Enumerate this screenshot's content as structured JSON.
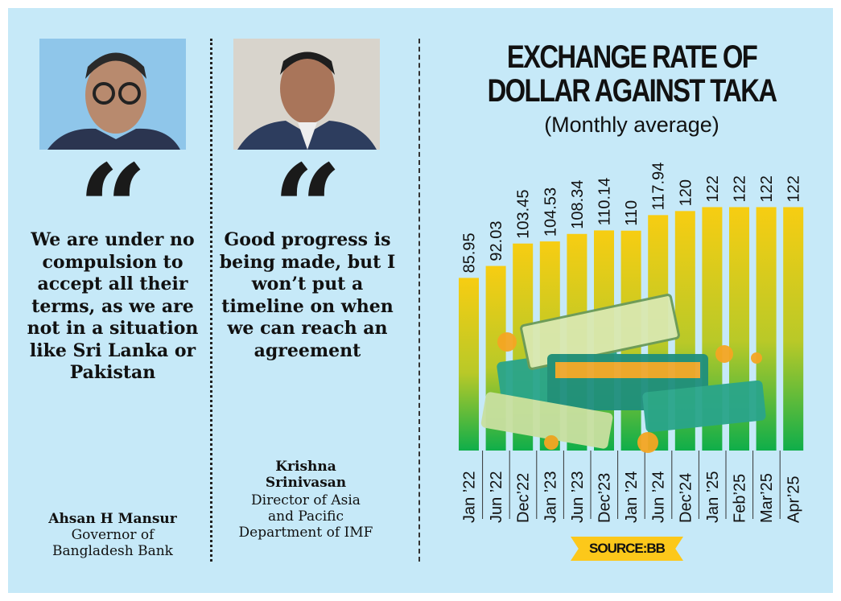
{
  "left_quote": {
    "quote": "We are under no compulsion to accept all their terms, as we are not in a situation like Sri Lanka or Pakistan",
    "name": "Ahsan H Mansur",
    "role": "Governor of Bangladesh Bank"
  },
  "middle_quote": {
    "quote": "Good progress is being made, but I won’t put a timeline on when we can reach an agreement",
    "name": "Krishna Srinivasan",
    "role": "Director of Asia and Pacific Department of IMF"
  },
  "quote_mark": "“",
  "source": "SOURCE:BB",
  "colors": {
    "background": "#c6e9f8",
    "bar_top": "#f7cd12",
    "bar_bottom": "#0fae4a",
    "ribbon": "#fcc81a"
  },
  "chart_data": {
    "type": "bar",
    "title": "EXCHANGE RATE OF DOLLAR AGAINST TAKA",
    "subtitle": "(Monthly average)",
    "categories": [
      "Jan ’22",
      "Jun ’22",
      "Dec’22",
      "Jan ’23",
      "Jun ’23",
      "Dec’23",
      "Jan ’24",
      "Jun ’24",
      "Dec’24",
      "Jan ’25",
      "Feb’25",
      "Mar’25",
      "Apr’25"
    ],
    "values": [
      85.95,
      92.03,
      103.45,
      104.53,
      108.34,
      110.14,
      110,
      117.94,
      120,
      122,
      122,
      122,
      122
    ],
    "labels": [
      "85.95",
      "92.03",
      "103.45",
      "104.53",
      "108.34",
      "110.14",
      "110",
      "117.94",
      "120",
      "122",
      "122",
      "122",
      "122"
    ],
    "xlabel": "",
    "ylabel": "",
    "ylim": [
      0,
      122
    ],
    "grid": false,
    "legend": "none"
  }
}
